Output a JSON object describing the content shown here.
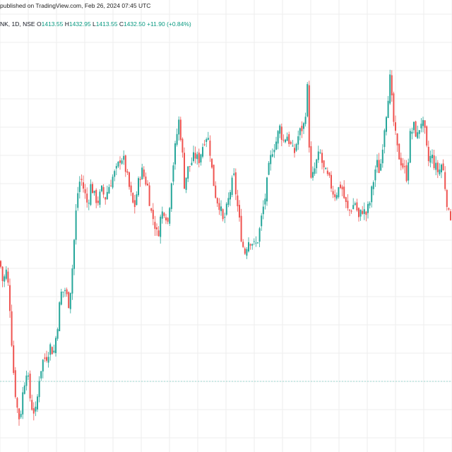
{
  "header": {
    "published": "published on TradingView.com, Feb 26, 2024 07:45 UTC",
    "symbol": "NK, 1D, NSE",
    "open_label": "O",
    "open": "1413.55",
    "high_label": "H",
    "high": "1432.95",
    "low_label": "L",
    "low": "1413.55",
    "close_label": "C",
    "close": "1432.50",
    "change": "+11.90 (+0.84%)"
  },
  "colors": {
    "up": "#26a69a",
    "down": "#ef5350",
    "grid": "#eeeeee",
    "hline": "#9ad6cc",
    "text": "#131722"
  },
  "chart_data": {
    "type": "candlestick",
    "ylim": [
      1155,
      1445
    ],
    "horizontal_line": 1200,
    "grid": true,
    "close_path": [
      [
        0,
        1285
      ],
      [
        4,
        1270
      ],
      [
        9,
        1278
      ],
      [
        13,
        1262
      ],
      [
        17,
        1225
      ],
      [
        20,
        1200
      ],
      [
        24,
        1182
      ],
      [
        28,
        1172
      ],
      [
        33,
        1195
      ],
      [
        38,
        1210
      ],
      [
        42,
        1190
      ],
      [
        46,
        1180
      ],
      [
        51,
        1178
      ],
      [
        56,
        1205
      ],
      [
        61,
        1215
      ],
      [
        66,
        1218
      ],
      [
        71,
        1225
      ],
      [
        76,
        1220
      ],
      [
        81,
        1238
      ],
      [
        86,
        1262
      ],
      [
        92,
        1265
      ],
      [
        97,
        1255
      ],
      [
        101,
        1270
      ],
      [
        105,
        1300
      ],
      [
        109,
        1330
      ],
      [
        114,
        1345
      ],
      [
        119,
        1335
      ],
      [
        124,
        1325
      ],
      [
        129,
        1340
      ],
      [
        134,
        1330
      ],
      [
        139,
        1328
      ],
      [
        144,
        1335
      ],
      [
        149,
        1330
      ],
      [
        154,
        1338
      ],
      [
        160,
        1345
      ],
      [
        166,
        1350
      ],
      [
        171,
        1360
      ],
      [
        176,
        1355
      ],
      [
        181,
        1342
      ],
      [
        186,
        1330
      ],
      [
        190,
        1322
      ],
      [
        195,
        1338
      ],
      [
        200,
        1350
      ],
      [
        204,
        1345
      ],
      [
        209,
        1338
      ],
      [
        214,
        1320
      ],
      [
        219,
        1312
      ],
      [
        223,
        1302
      ],
      [
        228,
        1318
      ],
      [
        233,
        1322
      ],
      [
        238,
        1312
      ],
      [
        243,
        1345
      ],
      [
        248,
        1365
      ],
      [
        253,
        1385
      ],
      [
        257,
        1370
      ],
      [
        261,
        1340
      ],
      [
        266,
        1350
      ],
      [
        271,
        1355
      ],
      [
        276,
        1360
      ],
      [
        281,
        1356
      ],
      [
        286,
        1365
      ],
      [
        291,
        1375
      ],
      [
        296,
        1370
      ],
      [
        301,
        1345
      ],
      [
        306,
        1330
      ],
      [
        311,
        1325
      ],
      [
        316,
        1312
      ],
      [
        321,
        1322
      ],
      [
        326,
        1335
      ],
      [
        331,
        1345
      ],
      [
        336,
        1325
      ],
      [
        341,
        1305
      ],
      [
        346,
        1290
      ],
      [
        351,
        1300
      ],
      [
        356,
        1300
      ],
      [
        361,
        1295
      ],
      [
        366,
        1302
      ],
      [
        371,
        1318
      ],
      [
        376,
        1332
      ],
      [
        381,
        1352
      ],
      [
        386,
        1365
      ],
      [
        391,
        1370
      ],
      [
        396,
        1380
      ],
      [
        401,
        1370
      ],
      [
        406,
        1375
      ],
      [
        411,
        1368
      ],
      [
        416,
        1360
      ],
      [
        421,
        1372
      ],
      [
        426,
        1378
      ],
      [
        431,
        1382
      ],
      [
        436,
        1412
      ],
      [
        439,
        1340
      ],
      [
        443,
        1345
      ],
      [
        448,
        1355
      ],
      [
        453,
        1362
      ],
      [
        458,
        1350
      ],
      [
        463,
        1345
      ],
      [
        468,
        1340
      ],
      [
        473,
        1332
      ],
      [
        478,
        1335
      ],
      [
        483,
        1340
      ],
      [
        488,
        1328
      ],
      [
        493,
        1320
      ],
      [
        498,
        1323
      ],
      [
        503,
        1327
      ],
      [
        508,
        1315
      ],
      [
        513,
        1322
      ],
      [
        518,
        1318
      ],
      [
        523,
        1325
      ],
      [
        528,
        1340
      ],
      [
        533,
        1355
      ],
      [
        538,
        1348
      ],
      [
        543,
        1375
      ],
      [
        548,
        1395
      ],
      [
        552,
        1415
      ],
      [
        557,
        1385
      ],
      [
        562,
        1365
      ],
      [
        566,
        1358
      ],
      [
        571,
        1352
      ],
      [
        576,
        1345
      ],
      [
        581,
        1375
      ],
      [
        586,
        1380
      ],
      [
        591,
        1373
      ],
      [
        596,
        1385
      ],
      [
        601,
        1378
      ],
      [
        606,
        1355
      ],
      [
        611,
        1360
      ],
      [
        616,
        1352
      ],
      [
        621,
        1348
      ],
      [
        626,
        1355
      ],
      [
        631,
        1335
      ],
      [
        636,
        1315
      ],
      [
        640,
        1320
      ]
    ]
  }
}
